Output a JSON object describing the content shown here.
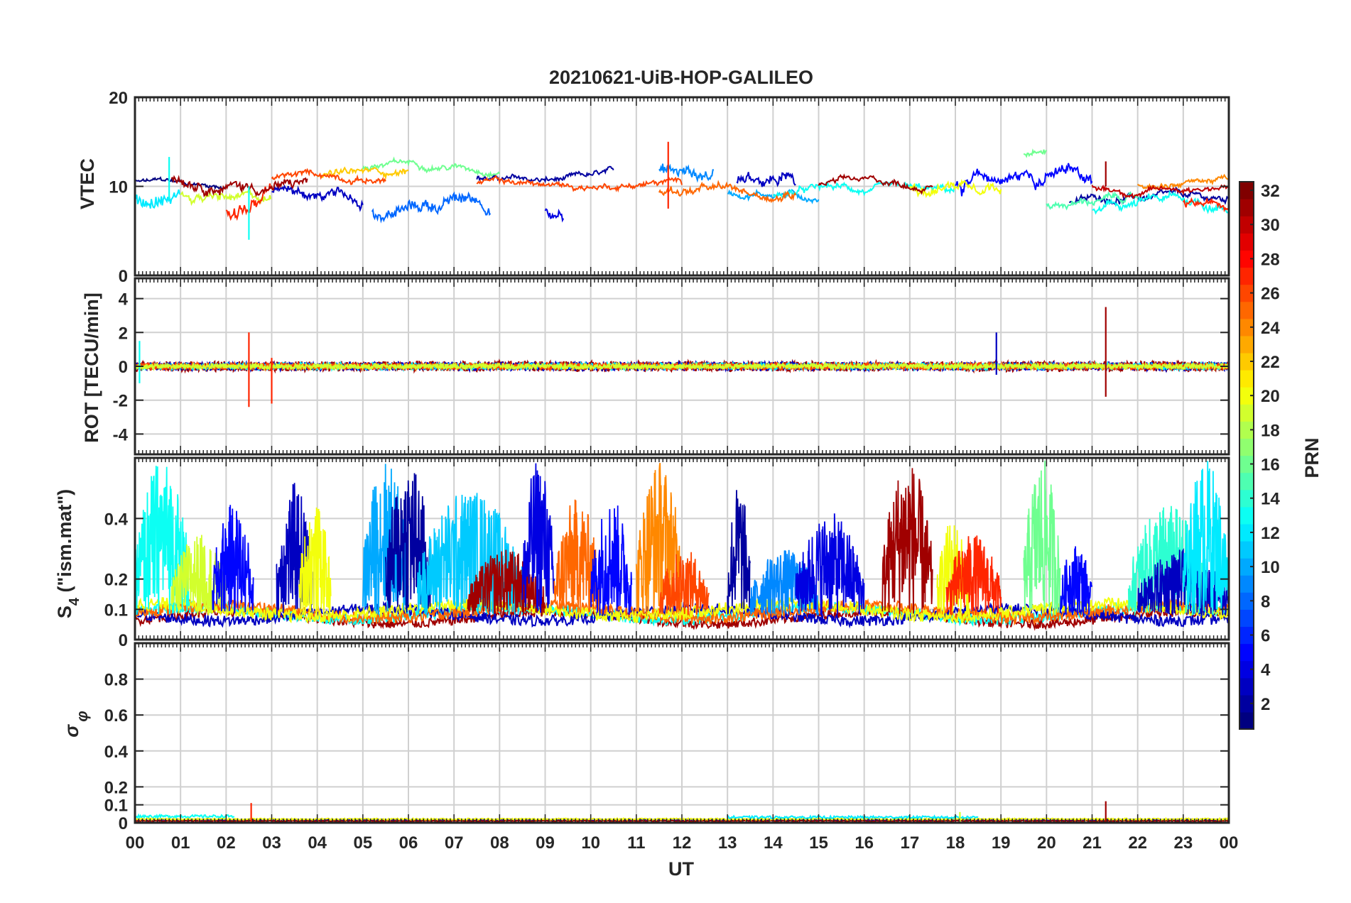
{
  "figure": {
    "title": "20210621-UiB-HOP-GALILEO",
    "colors": {
      "axis": "#262626",
      "grid": "#d0d0d0",
      "background": "#ffffff"
    }
  },
  "chart_data": [
    {
      "id": "vtec",
      "type": "line",
      "ylabel": "VTEC",
      "ylim": [
        0,
        20
      ],
      "yticks": [
        0,
        10,
        20
      ],
      "ytick_labels": [
        "0",
        "10",
        "20"
      ],
      "xlim": [
        0,
        24
      ],
      "baseline": 10,
      "series": [
        {
          "prn": 1,
          "start": 0.0,
          "end": 2.0,
          "level": 10.3,
          "amp": 0.4
        },
        {
          "prn": 3,
          "start": 3.0,
          "end": 5.0,
          "level": 9.0,
          "amp": 0.9
        },
        {
          "prn": 2,
          "start": 7.5,
          "end": 10.5,
          "level": 10.8,
          "amp": 0.5
        },
        {
          "prn": 4,
          "start": 9.0,
          "end": 9.4,
          "level": 7.2,
          "amp": 1.0
        },
        {
          "prn": 3,
          "start": 13.2,
          "end": 14.5,
          "level": 10.8,
          "amp": 1.2
        },
        {
          "prn": 5,
          "start": 18.0,
          "end": 21.0,
          "level": 10.8,
          "amp": 1.2
        },
        {
          "prn": 2,
          "start": 20.5,
          "end": 24.0,
          "level": 8.5,
          "amp": 0.6
        },
        {
          "prn": 8,
          "start": 5.2,
          "end": 7.8,
          "level": 7.8,
          "amp": 1.1
        },
        {
          "prn": 9,
          "start": 11.5,
          "end": 12.7,
          "level": 11.8,
          "amp": 1.2
        },
        {
          "prn": 10,
          "start": 13.0,
          "end": 15.0,
          "level": 9.2,
          "amp": 0.6
        },
        {
          "prn": 12,
          "start": 0.0,
          "end": 1.0,
          "level": 8.5,
          "amp": 1.3
        },
        {
          "prn": 13,
          "start": 14.0,
          "end": 18.0,
          "level": 9.3,
          "amp": 0.6
        },
        {
          "prn": 13,
          "start": 21.0,
          "end": 24.0,
          "level": 7.8,
          "amp": 0.8
        },
        {
          "prn": 16,
          "start": 5.0,
          "end": 8.0,
          "level": 12.3,
          "amp": 0.5
        },
        {
          "prn": 16,
          "start": 19.5,
          "end": 20.0,
          "level": 14.0,
          "amp": 0.6
        },
        {
          "prn": 15,
          "start": 20.0,
          "end": 22.0,
          "level": 8.3,
          "amp": 0.6
        },
        {
          "prn": 19,
          "start": 1.0,
          "end": 3.0,
          "level": 8.6,
          "amp": 0.8
        },
        {
          "prn": 20,
          "start": 17.0,
          "end": 19.0,
          "level": 10.5,
          "amp": 0.9
        },
        {
          "prn": 22,
          "start": 4.0,
          "end": 6.0,
          "level": 11.6,
          "amp": 0.6
        },
        {
          "prn": 25,
          "start": 11.5,
          "end": 14.5,
          "level": 9.3,
          "amp": 0.7
        },
        {
          "prn": 24,
          "start": 22.0,
          "end": 24.0,
          "level": 10.6,
          "amp": 0.5
        },
        {
          "prn": 26,
          "start": 3.0,
          "end": 5.5,
          "level": 11.0,
          "amp": 0.5
        },
        {
          "prn": 26,
          "start": 7.5,
          "end": 12.0,
          "level": 10.2,
          "amp": 0.5
        },
        {
          "prn": 27,
          "start": 2.0,
          "end": 3.0,
          "level": 8.0,
          "amp": 1.3
        },
        {
          "prn": 27,
          "start": 23.0,
          "end": 24.0,
          "level": 8.2,
          "amp": 0.7
        },
        {
          "prn": 31,
          "start": 0.8,
          "end": 3.8,
          "level": 10.6,
          "amp": 0.9
        },
        {
          "prn": 31,
          "start": 15.0,
          "end": 17.5,
          "level": 10.2,
          "amp": 0.5
        },
        {
          "prn": 30,
          "start": 21.0,
          "end": 24.0,
          "level": 9.8,
          "amp": 0.5
        }
      ],
      "spikes": [
        {
          "prn": 27,
          "x": 11.7,
          "y0": 7.5,
          "y1": 15.0
        },
        {
          "prn": 13,
          "x": 2.5,
          "y0": 4.0,
          "y1": 10.0
        },
        {
          "prn": 31,
          "x": 21.3,
          "y0": 10.0,
          "y1": 12.8
        },
        {
          "prn": 13,
          "x": 0.75,
          "y0": 8.5,
          "y1": 13.3
        }
      ]
    },
    {
      "id": "rot",
      "type": "line",
      "ylabel": "ROT [TECU/min]",
      "ylim": [
        -5.2,
        5.2
      ],
      "yticks": [
        -4,
        -2,
        0,
        2,
        4
      ],
      "ytick_labels": [
        "-4",
        "-2",
        "0",
        "2",
        "4"
      ],
      "xlim": [
        0,
        24
      ],
      "series": [
        {
          "prn": 31,
          "start": 0.0,
          "end": 24.0,
          "level": 0,
          "amp": 0.3
        },
        {
          "prn": 3,
          "start": 0.0,
          "end": 24.0,
          "level": 0,
          "amp": 0.25
        },
        {
          "prn": 12,
          "start": 0.0,
          "end": 24.0,
          "level": 0,
          "amp": 0.2
        },
        {
          "prn": 26,
          "start": 0.0,
          "end": 24.0,
          "level": 0,
          "amp": 0.2
        },
        {
          "prn": 19,
          "start": 0.0,
          "end": 24.0,
          "level": 0,
          "amp": 0.15
        }
      ],
      "spikes": [
        {
          "prn": 31,
          "x": 21.3,
          "y0": -1.8,
          "y1": 3.5
        },
        {
          "prn": 27,
          "x": 2.5,
          "y0": -2.4,
          "y1": 2.0
        },
        {
          "prn": 27,
          "x": 3.0,
          "y0": -2.2,
          "y1": 0.5
        },
        {
          "prn": 3,
          "x": 18.9,
          "y0": -0.5,
          "y1": 2.0
        },
        {
          "prn": 13,
          "x": 0.1,
          "y0": -1.0,
          "y1": 1.5
        }
      ]
    },
    {
      "id": "s4",
      "type": "line",
      "ylabel": "S4 (\"ism.mat\")",
      "ylim": [
        0,
        0.6
      ],
      "yticks": [
        0,
        0.1,
        0.2,
        0.4
      ],
      "ytick_labels": [
        "0",
        "0.1",
        "0.2",
        "0.4"
      ],
      "xlim": [
        0,
        24
      ],
      "bursts": [
        {
          "prn": 13,
          "x0": 0.0,
          "x1": 1.2,
          "peak": 0.6
        },
        {
          "prn": 19,
          "x0": 0.8,
          "x1": 2.0,
          "peak": 0.35
        },
        {
          "prn": 5,
          "x0": 1.7,
          "x1": 2.6,
          "peak": 0.45
        },
        {
          "prn": 3,
          "x0": 3.1,
          "x1": 3.9,
          "peak": 0.52
        },
        {
          "prn": 20,
          "x0": 3.6,
          "x1": 4.3,
          "peak": 0.45
        },
        {
          "prn": 10,
          "x0": 5.0,
          "x1": 6.0,
          "peak": 0.6
        },
        {
          "prn": 2,
          "x0": 5.5,
          "x1": 6.5,
          "peak": 0.6
        },
        {
          "prn": 11,
          "x0": 6.2,
          "x1": 8.5,
          "peak": 0.5
        },
        {
          "prn": 31,
          "x0": 7.3,
          "x1": 9.0,
          "peak": 0.3
        },
        {
          "prn": 4,
          "x0": 8.5,
          "x1": 9.2,
          "peak": 0.6
        },
        {
          "prn": 25,
          "x0": 9.2,
          "x1": 10.2,
          "peak": 0.47
        },
        {
          "prn": 5,
          "x0": 10.0,
          "x1": 10.9,
          "peak": 0.47
        },
        {
          "prn": 24,
          "x0": 11.0,
          "x1": 12.0,
          "peak": 0.6
        },
        {
          "prn": 26,
          "x0": 11.5,
          "x1": 12.6,
          "peak": 0.3
        },
        {
          "prn": 2,
          "x0": 13.0,
          "x1": 13.5,
          "peak": 0.52
        },
        {
          "prn": 9,
          "x0": 13.5,
          "x1": 15.0,
          "peak": 0.3
        },
        {
          "prn": 4,
          "x0": 14.5,
          "x1": 16.0,
          "peak": 0.42
        },
        {
          "prn": 31,
          "x0": 16.4,
          "x1": 17.5,
          "peak": 0.6
        },
        {
          "prn": 20,
          "x0": 17.6,
          "x1": 18.3,
          "peak": 0.4
        },
        {
          "prn": 27,
          "x0": 17.8,
          "x1": 19.0,
          "peak": 0.35
        },
        {
          "prn": 16,
          "x0": 19.5,
          "x1": 20.3,
          "peak": 0.6
        },
        {
          "prn": 5,
          "x0": 20.3,
          "x1": 21.0,
          "peak": 0.32
        },
        {
          "prn": 14,
          "x0": 21.8,
          "x1": 23.5,
          "peak": 0.45
        },
        {
          "prn": 3,
          "x0": 22.0,
          "x1": 24.0,
          "peak": 0.3
        },
        {
          "prn": 12,
          "x0": 23.0,
          "x1": 24.0,
          "peak": 0.6
        }
      ],
      "floors": [
        {
          "prn": 31,
          "start": 0.0,
          "end": 24.0,
          "level": 0.07
        },
        {
          "prn": 13,
          "start": 0.0,
          "end": 24.0,
          "level": 0.085
        },
        {
          "prn": 3,
          "start": 0.0,
          "end": 24.0,
          "level": 0.08
        },
        {
          "prn": 25,
          "start": 0.0,
          "end": 24.0,
          "level": 0.09
        },
        {
          "prn": 20,
          "start": 0.0,
          "end": 24.0,
          "level": 0.095
        }
      ]
    },
    {
      "id": "sigma_phi",
      "type": "line",
      "ylabel": "σ φ",
      "ylim": [
        0,
        1.0
      ],
      "yticks": [
        0,
        0.1,
        0.2,
        0.4,
        0.6,
        0.8
      ],
      "ytick_labels": [
        "0",
        "0.1",
        "0.2",
        "0.4",
        "0.6",
        "0.8"
      ],
      "xlim": [
        0,
        24
      ],
      "floors": [
        {
          "prn": 13,
          "start": 0.0,
          "end": 2.2,
          "level": 0.035
        },
        {
          "prn": 3,
          "start": 0.0,
          "end": 24.0,
          "level": 0.015
        },
        {
          "prn": 31,
          "start": 0.0,
          "end": 24.0,
          "level": 0.01
        },
        {
          "prn": 20,
          "start": 0.0,
          "end": 24.0,
          "level": 0.02
        },
        {
          "prn": 12,
          "start": 13.0,
          "end": 18.5,
          "level": 0.03
        }
      ],
      "spikes": [
        {
          "prn": 27,
          "x": 2.55,
          "y0": 0.0,
          "y1": 0.11
        },
        {
          "prn": 31,
          "x": 21.3,
          "y0": 0.0,
          "y1": 0.12
        },
        {
          "prn": 19,
          "x": 18.1,
          "y0": 0.0,
          "y1": 0.06
        }
      ]
    }
  ],
  "xaxis": {
    "label": "UT",
    "tick_labels": [
      "00",
      "01",
      "02",
      "03",
      "04",
      "05",
      "06",
      "07",
      "08",
      "09",
      "10",
      "11",
      "12",
      "13",
      "14",
      "15",
      "16",
      "17",
      "18",
      "19",
      "20",
      "21",
      "22",
      "23",
      "00"
    ]
  },
  "colorbar": {
    "label": "PRN",
    "range": [
      1,
      32
    ],
    "tick_values": [
      2,
      4,
      6,
      8,
      10,
      12,
      14,
      16,
      18,
      20,
      22,
      24,
      26,
      28,
      30,
      32
    ],
    "tick_labels": [
      "2",
      "4",
      "6",
      "8",
      "10",
      "12",
      "14",
      "16",
      "18",
      "20",
      "22",
      "24",
      "26",
      "28",
      "30",
      "32"
    ],
    "colormap": "jet"
  }
}
